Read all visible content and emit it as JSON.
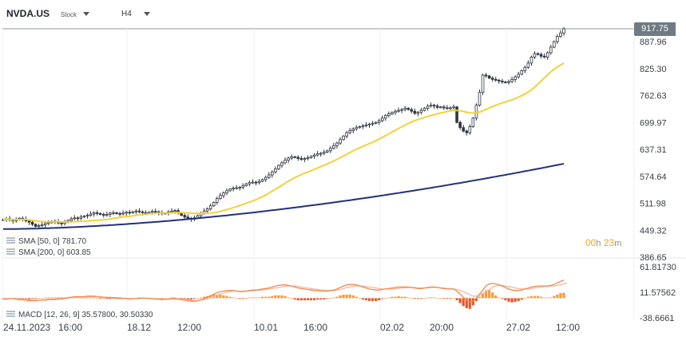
{
  "toolbar": {
    "symbol": "NVDA.US",
    "instrument_type": "Stock",
    "timeframe": "H4"
  },
  "legend": {
    "sma50": "SMA [50, 0] 781.70",
    "sma200": "SMA [200, 0] 603.85",
    "macd_params": "MACD [12, 26, 9]",
    "macd_values": "35.57800,   30.50330"
  },
  "countdown": {
    "h_value": "00",
    "h_unit": "h",
    "m_value": "23",
    "m_unit": "m"
  },
  "last_price": "917.75",
  "colors": {
    "candle": "#2f3640",
    "sma50": "#f2d23a",
    "sma200": "#24307a",
    "price_line": "#8f959c",
    "macd_line": "#f08a4b",
    "signal_line": "#f4b7a3",
    "hist_pos": "#f39b3a",
    "hist_neg": "#e8562a"
  },
  "chart_data": {
    "type": "candlestick",
    "price_axis_ticks": [
      "917.75",
      "887.96",
      "825.30",
      "762.63",
      "699.97",
      "637.31",
      "574.64",
      "511.98",
      "449.32",
      "386.65"
    ],
    "ylim": [
      386.65,
      950
    ],
    "x_tick_labels": [
      "24.11.2023",
      "16:00",
      "18.12",
      "12:00",
      "10.01",
      "16:00",
      "02.02",
      "20:00",
      "27.02",
      "12:00"
    ],
    "close": [
      474,
      476,
      473,
      471,
      474,
      477,
      475,
      471,
      468,
      463,
      458,
      460,
      462,
      465,
      467,
      470,
      469,
      466,
      465,
      468,
      472,
      476,
      478,
      477,
      480,
      482,
      484,
      487,
      490,
      488,
      486,
      484,
      486,
      489,
      490,
      488,
      487,
      489,
      491,
      490,
      492,
      494,
      492,
      490,
      489,
      491,
      493,
      492,
      490,
      488,
      489,
      492,
      494,
      495,
      490,
      484,
      480,
      477,
      475,
      478,
      483,
      488,
      494,
      499,
      506,
      514,
      523,
      530,
      536,
      541,
      545,
      547,
      548,
      549,
      553,
      557,
      560,
      561,
      560,
      563,
      567,
      572,
      578,
      585,
      592,
      600,
      606,
      612,
      617,
      620,
      619,
      616,
      614,
      616,
      618,
      621,
      624,
      627,
      628,
      631,
      634,
      640,
      646,
      652,
      660,
      668,
      676,
      681,
      685,
      688,
      690,
      692,
      694,
      696,
      698,
      700,
      704,
      710,
      716,
      720,
      723,
      726,
      728,
      730,
      733,
      730,
      726,
      721,
      723,
      728,
      733,
      738,
      740,
      738,
      735,
      736,
      734,
      733,
      734,
      736,
      700,
      688,
      680,
      676,
      690,
      710,
      740,
      770,
      810,
      808,
      803,
      800,
      798,
      796,
      794,
      793,
      795,
      800,
      806,
      812,
      820,
      828,
      838,
      852,
      860,
      858,
      854,
      852,
      862,
      875,
      888,
      900,
      908,
      917.75
    ],
    "macd": [
      -2,
      -2,
      -1,
      -1,
      -2,
      -3,
      -3,
      -4,
      -5,
      -5,
      -5,
      -4,
      -4,
      -3,
      -2,
      -2,
      -2,
      -1,
      -1,
      0,
      1,
      2,
      3,
      3,
      3,
      3,
      4,
      4,
      4,
      3,
      2,
      2,
      1,
      1,
      1,
      0,
      0,
      -1,
      -1,
      -2,
      -1,
      -1,
      0,
      0,
      0,
      -1,
      -1,
      -2,
      -2,
      -3,
      -2,
      -2,
      -1,
      -1,
      -2,
      -3,
      -4,
      -5,
      -6,
      -6,
      -5,
      -3,
      -1,
      2,
      5,
      8,
      11,
      13,
      14,
      15,
      15,
      15,
      14,
      13,
      13,
      14,
      15,
      16,
      16,
      17,
      18,
      19,
      20,
      22,
      24,
      25,
      26,
      26,
      25,
      24,
      22,
      20,
      19,
      18,
      17,
      16,
      15,
      15,
      14,
      14,
      14,
      15,
      16,
      18,
      21,
      24,
      26,
      27,
      27,
      26,
      24,
      22,
      20,
      18,
      17,
      16,
      16,
      17,
      18,
      19,
      20,
      21,
      22,
      22,
      22,
      22,
      21,
      20,
      19,
      19,
      20,
      21,
      22,
      22,
      21,
      20,
      19,
      18,
      18,
      18,
      14,
      8,
      2,
      -4,
      -8,
      -6,
      0,
      8,
      16,
      24,
      28,
      29,
      28,
      26,
      24,
      21,
      18,
      16,
      15,
      15,
      16,
      18,
      20,
      22,
      23,
      24,
      24,
      24,
      24,
      25,
      27,
      30,
      33,
      35.578
    ],
    "signal": [
      -1,
      -1,
      -1,
      -1,
      -1,
      -2,
      -2,
      -3,
      -3,
      -4,
      -4,
      -4,
      -4,
      -4,
      -3,
      -3,
      -3,
      -2,
      -2,
      -1,
      0,
      1,
      1,
      2,
      2,
      2,
      3,
      3,
      3,
      3,
      3,
      2,
      2,
      2,
      1,
      1,
      1,
      0,
      0,
      -1,
      -1,
      -1,
      -1,
      0,
      0,
      0,
      -1,
      -1,
      -1,
      -2,
      -2,
      -2,
      -2,
      -2,
      -2,
      -2,
      -3,
      -3,
      -4,
      -5,
      -5,
      -4,
      -3,
      -1,
      1,
      3,
      6,
      8,
      10,
      12,
      13,
      14,
      14,
      14,
      14,
      14,
      14,
      15,
      15,
      16,
      16,
      17,
      18,
      19,
      20,
      21,
      22,
      23,
      24,
      24,
      24,
      23,
      22,
      21,
      20,
      19,
      18,
      17,
      16,
      16,
      15,
      15,
      15,
      16,
      17,
      19,
      21,
      22,
      23,
      24,
      24,
      24,
      23,
      22,
      21,
      20,
      19,
      18,
      18,
      18,
      18,
      19,
      19,
      20,
      20,
      21,
      21,
      21,
      20,
      20,
      20,
      20,
      21,
      21,
      21,
      20,
      20,
      19,
      19,
      18,
      17,
      15,
      13,
      10,
      7,
      4,
      4,
      6,
      9,
      13,
      17,
      21,
      24,
      25,
      25,
      24,
      23,
      22,
      20,
      19,
      18,
      18,
      18,
      19,
      20,
      21,
      22,
      23,
      23,
      24,
      24,
      25,
      26,
      28,
      30.5033
    ],
    "macd_axis_ticks": [
      "61.81730",
      "11.57562",
      "-38.6661"
    ],
    "macd_ylim": [
      -38.6661,
      61.8173
    ]
  }
}
